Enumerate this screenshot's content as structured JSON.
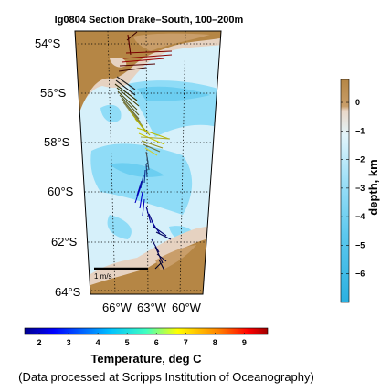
{
  "title": "lg0804 Section Drake–South, 100–200m",
  "lat_labels": [
    {
      "deg": 54,
      "text": "54°S"
    },
    {
      "deg": 56,
      "text": "56°S"
    },
    {
      "deg": 58,
      "text": "58°S"
    },
    {
      "deg": 60,
      "text": "60°S"
    },
    {
      "deg": 62,
      "text": "62°S"
    },
    {
      "deg": 64,
      "text": "64°S"
    }
  ],
  "lon_labels": [
    {
      "deg": 66,
      "text": "66°W"
    },
    {
      "deg": 63,
      "text": "63°W"
    },
    {
      "deg": 60,
      "text": "60°W"
    }
  ],
  "scale_label": "1 m/s",
  "depth_colorbar": {
    "label": "depth, km",
    "ticks": [
      "0",
      "−1",
      "−2",
      "−3",
      "−4",
      "−5",
      "−6"
    ],
    "tick_values": [
      0,
      -1,
      -2,
      -3,
      -4,
      -5,
      -6
    ],
    "range": [
      -7,
      0.8
    ],
    "colors": {
      "land": "#b58645",
      "shelf": "#e6d2c1",
      "mid": "#d6f0fa",
      "deep": "#8fdcf7",
      "abyss": "#2bb0e0"
    }
  },
  "temp_colorbar": {
    "label": "Temperature, deg C",
    "ticks": [
      "2",
      "3",
      "4",
      "5",
      "6",
      "7",
      "8",
      "9"
    ],
    "tick_values": [
      2,
      3,
      4,
      5,
      6,
      7,
      8,
      9
    ],
    "range": [
      1.5,
      9.8
    ]
  },
  "source_note": "(Data processed at Scripps Institution of Oceanography)"
}
